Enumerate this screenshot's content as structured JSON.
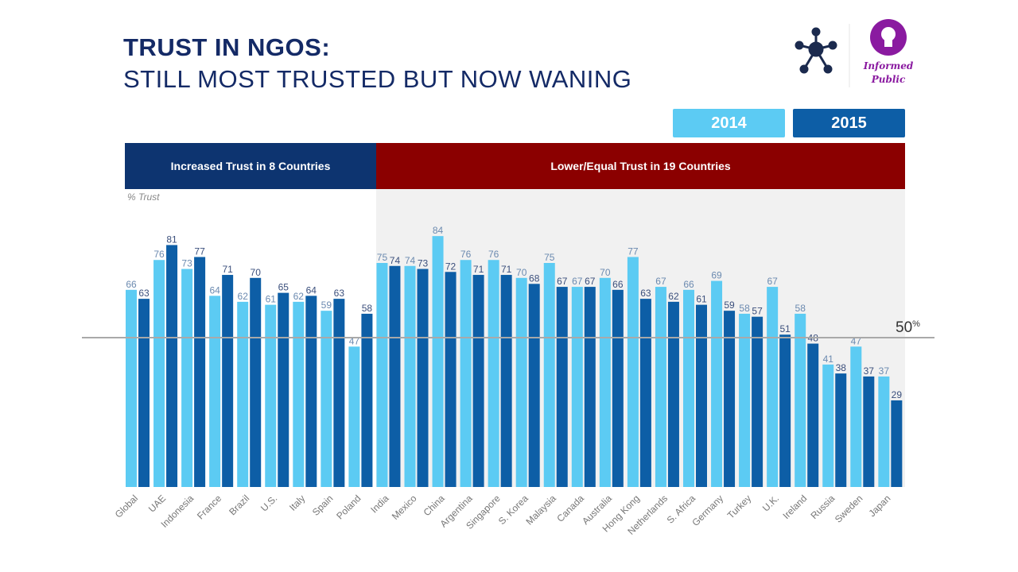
{
  "header": {
    "title_line1": "TRUST IN NGOS:",
    "title_line2": "STILL MOST TRUSTED BUT NOW WANING"
  },
  "logo": {
    "text_line1": "Informed",
    "text_line2": "Public",
    "icons": [
      "network-icon",
      "lightbulb-icon"
    ]
  },
  "bands": {
    "increased": "Increased Trust in 8 Countries",
    "lower": "Lower/Equal Trust in 19 Countries"
  },
  "chart_data": {
    "type": "bar",
    "ylabel": "% Trust",
    "reference_line": {
      "value": 50,
      "label": "50",
      "unit": "%"
    },
    "ylim": [
      0,
      100
    ],
    "grid": false,
    "legend": "top-right",
    "categories": [
      "Global",
      "UAE",
      "Indonesia",
      "France",
      "Brazil",
      "U.S.",
      "Italy",
      "Spain",
      "Poland",
      "India",
      "Mexico",
      "China",
      "Argentina",
      "Singapore",
      "S. Korea",
      "Malaysia",
      "Canada",
      "Australia",
      "Hong Kong",
      "Netherlands",
      "S. Africa",
      "Germany",
      "Turkey",
      "U.K.",
      "Ireland",
      "Russia",
      "Sweden",
      "Japan"
    ],
    "series": [
      {
        "name": "2014",
        "color": "#5ccbf3",
        "values": [
          66,
          76,
          73,
          64,
          62,
          61,
          62,
          59,
          47,
          75,
          74,
          84,
          76,
          76,
          70,
          75,
          67,
          70,
          77,
          67,
          66,
          69,
          58,
          67,
          58,
          41,
          47,
          37
        ]
      },
      {
        "name": "2015",
        "color": "#0d5ea6",
        "values": [
          63,
          81,
          77,
          71,
          70,
          65,
          64,
          63,
          58,
          74,
          73,
          72,
          71,
          71,
          68,
          67,
          67,
          66,
          63,
          62,
          61,
          59,
          57,
          51,
          48,
          38,
          37,
          29
        ]
      }
    ]
  }
}
